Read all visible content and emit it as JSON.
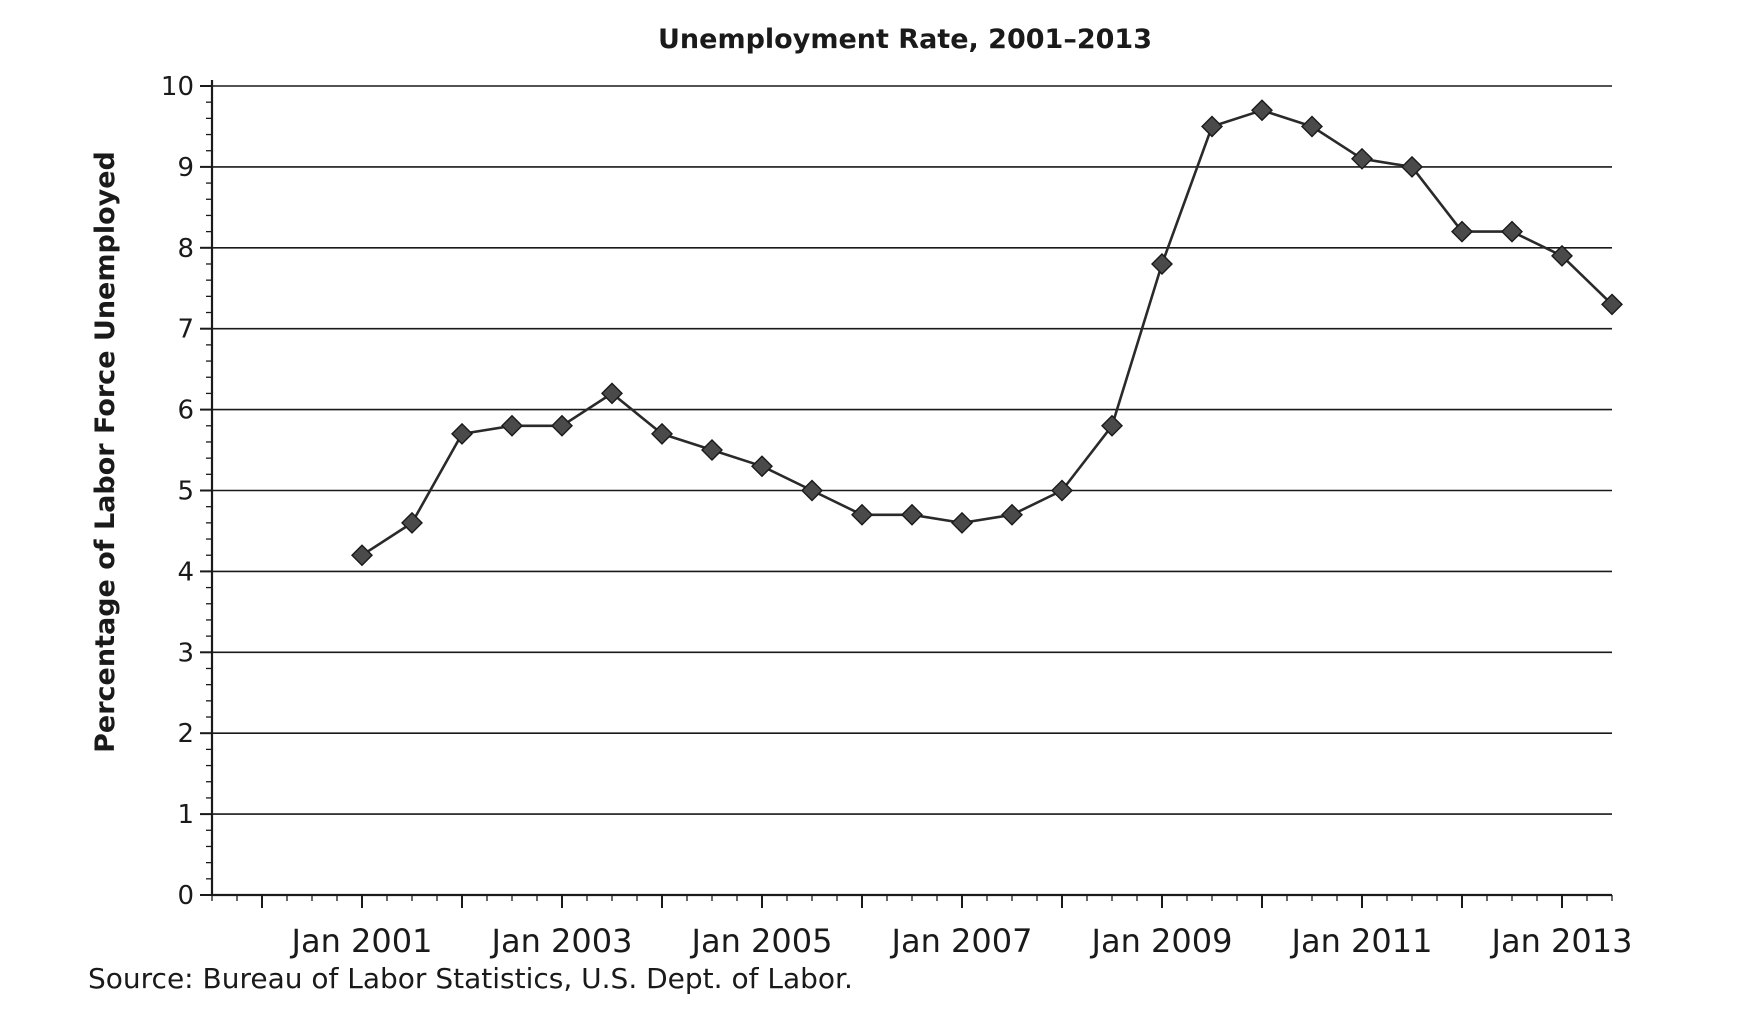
{
  "chart_data": {
    "type": "line",
    "title": "Unemployment Rate, 2001–2013",
    "ylabel": "Percentage of Labor Force Unemployed",
    "xlabel": "",
    "ylim": [
      0,
      10
    ],
    "yticks": [
      "0",
      "1",
      "2",
      "3",
      "4",
      "5",
      "6",
      "7",
      "8",
      "9",
      "10"
    ],
    "xlim": [
      "Jul 1999",
      "Jul 2013"
    ],
    "xticks": [
      "Jan 2001",
      "Jan 2003",
      "Jan 2005",
      "Jan 2007",
      "Jan 2009",
      "Jan 2011",
      "Jan 2013"
    ],
    "grid": "horizontal",
    "marker": "diamond",
    "line_color": "#2a2a2a",
    "marker_color": "#4a4a4a",
    "series": [
      {
        "x": [
          "Jan 2001",
          "Jul 2001",
          "Jan 2002",
          "Jul 2002",
          "Jan 2003",
          "Jul 2003",
          "Jan 2004",
          "Jul 2004",
          "Jan 2005",
          "Jul 2005",
          "Jan 2006",
          "Jul 2006",
          "Jan 2007",
          "Jul 2007",
          "Jan 2008",
          "Jul 2008",
          "Jan 2009",
          "Jul 2009",
          "Jan 2010",
          "Jul 2010",
          "Jan 2011",
          "Jul 2011",
          "Jan 2012",
          "Jul 2012",
          "Jan 2013",
          "Jul 2013"
        ],
        "values": [
          4.2,
          4.6,
          5.7,
          5.8,
          5.8,
          6.2,
          5.7,
          5.5,
          5.3,
          5.0,
          4.7,
          4.7,
          4.6,
          4.7,
          5.0,
          5.8,
          7.8,
          9.5,
          9.7,
          9.5,
          9.1,
          9.0,
          8.2,
          8.2,
          7.9,
          7.3
        ]
      }
    ]
  },
  "source": "Source: Bureau of Labor Statistics, U.S. Dept. of Labor."
}
